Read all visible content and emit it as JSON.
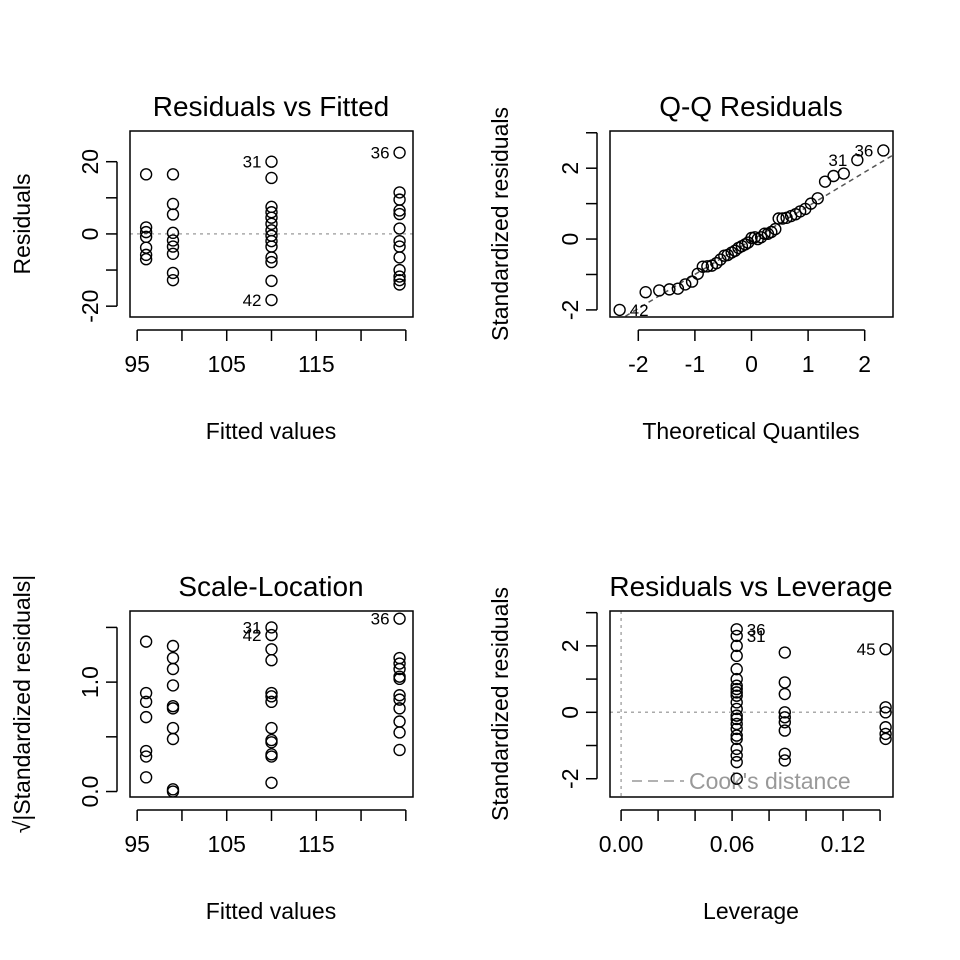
{
  "chart_data": [
    {
      "type": "scatter",
      "title": "Residuals vs Fitted",
      "xlabel": "Fitted values",
      "ylabel": "Residuals",
      "xlim": [
        94.2,
        125.8
      ],
      "ylim": [
        -23.0,
        28.5
      ],
      "xticks": [
        {
          "v": 95,
          "label": "95"
        },
        {
          "v": 105,
          "label": "105"
        },
        {
          "v": 115,
          "label": "115"
        }
      ],
      "yticks": [
        {
          "v": -20,
          "label": "-20"
        },
        {
          "v": 0,
          "label": "0"
        },
        {
          "v": 20,
          "label": "20"
        }
      ],
      "refline": {
        "y": 0,
        "style": "dotted"
      },
      "annotations": [
        {
          "label": "31",
          "x": 110,
          "y": 20,
          "side": "left"
        },
        {
          "label": "36",
          "x": 124.3,
          "y": 22.5,
          "side": "left"
        },
        {
          "label": "42",
          "x": 110,
          "y": -18.3,
          "side": "left"
        }
      ],
      "points": [
        {
          "x": 96,
          "y": 16.5
        },
        {
          "x": 96,
          "y": 1.8
        },
        {
          "x": 96,
          "y": 0.5
        },
        {
          "x": 96,
          "y": -0.8
        },
        {
          "x": 96,
          "y": -3.8
        },
        {
          "x": 96,
          "y": -5.8
        },
        {
          "x": 96,
          "y": -7.0
        },
        {
          "x": 99,
          "y": 16.5
        },
        {
          "x": 99,
          "y": 8.3
        },
        {
          "x": 99,
          "y": 5.4
        },
        {
          "x": 99,
          "y": 0.3
        },
        {
          "x": 99,
          "y": -1.8
        },
        {
          "x": 99,
          "y": -3.5
        },
        {
          "x": 99,
          "y": -5.5
        },
        {
          "x": 99,
          "y": -10.8
        },
        {
          "x": 99,
          "y": -12.8
        },
        {
          "x": 110,
          "y": 20.0
        },
        {
          "x": 110,
          "y": 15.5
        },
        {
          "x": 110,
          "y": 7.5
        },
        {
          "x": 110,
          "y": 6.0
        },
        {
          "x": 110,
          "y": 4.5
        },
        {
          "x": 110,
          "y": 2.8
        },
        {
          "x": 110,
          "y": 1.0
        },
        {
          "x": 110,
          "y": -0.5
        },
        {
          "x": 110,
          "y": -2.0
        },
        {
          "x": 110,
          "y": -3.5
        },
        {
          "x": 110,
          "y": -6.5
        },
        {
          "x": 110,
          "y": -7.8
        },
        {
          "x": 110,
          "y": -13.0
        },
        {
          "x": 110,
          "y": -18.3
        },
        {
          "x": 124.3,
          "y": 22.5
        },
        {
          "x": 124.3,
          "y": 11.5
        },
        {
          "x": 124.3,
          "y": 9.5
        },
        {
          "x": 124.3,
          "y": 6.5
        },
        {
          "x": 124.3,
          "y": 5.5
        },
        {
          "x": 124.3,
          "y": 1.5
        },
        {
          "x": 124.3,
          "y": -2.0
        },
        {
          "x": 124.3,
          "y": -3.5
        },
        {
          "x": 124.3,
          "y": -6.5
        },
        {
          "x": 124.3,
          "y": -10.0
        },
        {
          "x": 124.3,
          "y": -11.8
        },
        {
          "x": 124.3,
          "y": -12.8
        },
        {
          "x": 124.3,
          "y": -14.0
        }
      ]
    },
    {
      "type": "scatter",
      "title": "Q-Q Residuals",
      "xlabel": "Theoretical Quantiles",
      "ylabel": "Standardized residuals",
      "xlim": [
        -2.5,
        2.5
      ],
      "ylim": [
        -2.2,
        3.05
      ],
      "xticks": [
        {
          "v": -2,
          "label": "-2"
        },
        {
          "v": -1,
          "label": "-1"
        },
        {
          "v": 0,
          "label": "0"
        },
        {
          "v": 1,
          "label": "1"
        },
        {
          "v": 2,
          "label": "2"
        }
      ],
      "yticks": [
        {
          "v": -2,
          "label": "-2"
        },
        {
          "v": 0,
          "label": "0"
        },
        {
          "v": 2,
          "label": "2"
        }
      ],
      "refline": {
        "type": "diagonal",
        "from": [
          -2.5,
          -2.44
        ],
        "to": [
          2.5,
          2.37
        ],
        "style": "dashed"
      },
      "annotations": [
        {
          "label": "36",
          "x": 2.33,
          "y": 2.5,
          "side": "left"
        },
        {
          "label": "31",
          "x": 1.87,
          "y": 2.23,
          "side": "left"
        },
        {
          "label": "42",
          "x": -2.33,
          "y": -2.0,
          "side": "right"
        }
      ],
      "points": [
        {
          "x": -2.33,
          "y": -2.0
        },
        {
          "x": -1.87,
          "y": -1.5
        },
        {
          "x": -1.63,
          "y": -1.45
        },
        {
          "x": -1.45,
          "y": -1.42
        },
        {
          "x": -1.3,
          "y": -1.4
        },
        {
          "x": -1.17,
          "y": -1.28
        },
        {
          "x": -1.05,
          "y": -1.2
        },
        {
          "x": -0.95,
          "y": -0.98
        },
        {
          "x": -0.86,
          "y": -0.78
        },
        {
          "x": -0.78,
          "y": -0.77
        },
        {
          "x": -0.7,
          "y": -0.75
        },
        {
          "x": -0.62,
          "y": -0.68
        },
        {
          "x": -0.55,
          "y": -0.58
        },
        {
          "x": -0.48,
          "y": -0.47
        },
        {
          "x": -0.42,
          "y": -0.45
        },
        {
          "x": -0.35,
          "y": -0.38
        },
        {
          "x": -0.29,
          "y": -0.33
        },
        {
          "x": -0.23,
          "y": -0.25
        },
        {
          "x": -0.17,
          "y": -0.2
        },
        {
          "x": -0.11,
          "y": -0.15
        },
        {
          "x": -0.06,
          "y": -0.1
        },
        {
          "x": 0.0,
          "y": 0.03
        },
        {
          "x": 0.06,
          "y": 0.05
        },
        {
          "x": 0.11,
          "y": 0.0
        },
        {
          "x": 0.17,
          "y": 0.05
        },
        {
          "x": 0.23,
          "y": 0.15
        },
        {
          "x": 0.29,
          "y": 0.15
        },
        {
          "x": 0.35,
          "y": 0.2
        },
        {
          "x": 0.42,
          "y": 0.28
        },
        {
          "x": 0.48,
          "y": 0.58
        },
        {
          "x": 0.55,
          "y": 0.58
        },
        {
          "x": 0.62,
          "y": 0.6
        },
        {
          "x": 0.7,
          "y": 0.65
        },
        {
          "x": 0.78,
          "y": 0.7
        },
        {
          "x": 0.86,
          "y": 0.78
        },
        {
          "x": 0.95,
          "y": 0.85
        },
        {
          "x": 1.05,
          "y": 1.0
        },
        {
          "x": 1.17,
          "y": 1.15
        },
        {
          "x": 1.3,
          "y": 1.62
        },
        {
          "x": 1.45,
          "y": 1.78
        },
        {
          "x": 1.63,
          "y": 1.85
        },
        {
          "x": 1.87,
          "y": 2.23
        },
        {
          "x": 2.33,
          "y": 2.5
        }
      ]
    },
    {
      "type": "scatter",
      "title": "Scale-Location",
      "xlabel": "Fitted values",
      "ylabel": "√|Standardized residuals|",
      "xlim": [
        94.2,
        125.8
      ],
      "ylim": [
        -0.05,
        1.65
      ],
      "xticks": [
        {
          "v": 95,
          "label": "95"
        },
        {
          "v": 105,
          "label": "105"
        },
        {
          "v": 115,
          "label": "115"
        }
      ],
      "yticks": [
        {
          "v": 0.0,
          "label": "0.0"
        },
        {
          "v": 1.0,
          "label": "1.0"
        }
      ],
      "annotations": [
        {
          "label": "36",
          "x": 124.3,
          "y": 1.58,
          "side": "left"
        },
        {
          "label": "31",
          "x": 110,
          "y": 1.5,
          "side": "left"
        },
        {
          "label": "42",
          "x": 110,
          "y": 1.43,
          "side": "left"
        }
      ],
      "points": [
        {
          "x": 96,
          "y": 1.37
        },
        {
          "x": 96,
          "y": 0.9
        },
        {
          "x": 96,
          "y": 0.82
        },
        {
          "x": 96,
          "y": 0.68
        },
        {
          "x": 96,
          "y": 0.37
        },
        {
          "x": 96,
          "y": 0.32
        },
        {
          "x": 96,
          "y": 0.13
        },
        {
          "x": 99,
          "y": 1.33
        },
        {
          "x": 99,
          "y": 1.22
        },
        {
          "x": 99,
          "y": 1.12
        },
        {
          "x": 99,
          "y": 0.97
        },
        {
          "x": 99,
          "y": 0.78
        },
        {
          "x": 99,
          "y": 0.76
        },
        {
          "x": 99,
          "y": 0.58
        },
        {
          "x": 99,
          "y": 0.48
        },
        {
          "x": 99,
          "y": 0.02
        },
        {
          "x": 99,
          "y": 0.0
        },
        {
          "x": 110,
          "y": 1.5
        },
        {
          "x": 110,
          "y": 1.43
        },
        {
          "x": 110,
          "y": 1.3
        },
        {
          "x": 110,
          "y": 1.2
        },
        {
          "x": 110,
          "y": 0.9
        },
        {
          "x": 110,
          "y": 0.87
        },
        {
          "x": 110,
          "y": 0.82
        },
        {
          "x": 110,
          "y": 0.58
        },
        {
          "x": 110,
          "y": 0.47
        },
        {
          "x": 110,
          "y": 0.45
        },
        {
          "x": 110,
          "y": 0.34
        },
        {
          "x": 110,
          "y": 0.32
        },
        {
          "x": 110,
          "y": 0.08
        },
        {
          "x": 124.3,
          "y": 1.58
        },
        {
          "x": 124.3,
          "y": 1.22
        },
        {
          "x": 124.3,
          "y": 1.17
        },
        {
          "x": 124.3,
          "y": 1.12
        },
        {
          "x": 124.3,
          "y": 1.05
        },
        {
          "x": 124.3,
          "y": 1.03
        },
        {
          "x": 124.3,
          "y": 0.88
        },
        {
          "x": 124.3,
          "y": 0.84
        },
        {
          "x": 124.3,
          "y": 0.76
        },
        {
          "x": 124.3,
          "y": 0.64
        },
        {
          "x": 124.3,
          "y": 0.54
        },
        {
          "x": 124.3,
          "y": 0.38
        }
      ]
    },
    {
      "type": "scatter",
      "title": "Residuals vs Leverage",
      "xlabel": "Leverage",
      "ylabel": "Standardized residuals",
      "xlim": [
        -0.006,
        0.147
      ],
      "ylim": [
        -2.55,
        3.05
      ],
      "xticks": [
        {
          "v": 0.0,
          "label": "0.00"
        },
        {
          "v": 0.06,
          "label": "0.06"
        },
        {
          "v": 0.12,
          "label": "0.12"
        }
      ],
      "yticks": [
        {
          "v": -2,
          "label": "-2"
        },
        {
          "v": 0,
          "label": "0"
        },
        {
          "v": 2,
          "label": "2"
        }
      ],
      "refline": {
        "y": 0,
        "x": 0,
        "style": "dotted"
      },
      "legend": {
        "label": "Cook's distance",
        "position": "bottom-left",
        "style": "dashed"
      },
      "annotations": [
        {
          "label": "36",
          "x": 0.0625,
          "y": 2.5,
          "side": "right"
        },
        {
          "label": "31",
          "x": 0.0625,
          "y": 2.3,
          "side": "right"
        },
        {
          "label": "45",
          "x": 0.143,
          "y": 1.9,
          "side": "left"
        }
      ],
      "points": [
        {
          "x": 0.0625,
          "y": 2.5
        },
        {
          "x": 0.0625,
          "y": 2.3
        },
        {
          "x": 0.0625,
          "y": 2.0
        },
        {
          "x": 0.0625,
          "y": 1.7
        },
        {
          "x": 0.0625,
          "y": 1.3
        },
        {
          "x": 0.0625,
          "y": 1.0
        },
        {
          "x": 0.0625,
          "y": 0.8
        },
        {
          "x": 0.0625,
          "y": 0.7
        },
        {
          "x": 0.0625,
          "y": 0.6
        },
        {
          "x": 0.0625,
          "y": 0.5
        },
        {
          "x": 0.0625,
          "y": 0.3
        },
        {
          "x": 0.0625,
          "y": 0.1
        },
        {
          "x": 0.0625,
          "y": -0.1
        },
        {
          "x": 0.0625,
          "y": -0.2
        },
        {
          "x": 0.0625,
          "y": -0.35
        },
        {
          "x": 0.0625,
          "y": -0.5
        },
        {
          "x": 0.0625,
          "y": -0.7
        },
        {
          "x": 0.0625,
          "y": -0.8
        },
        {
          "x": 0.0625,
          "y": -1.1
        },
        {
          "x": 0.0625,
          "y": -1.3
        },
        {
          "x": 0.0625,
          "y": -1.5
        },
        {
          "x": 0.0625,
          "y": -2.0
        },
        {
          "x": 0.0885,
          "y": 1.8
        },
        {
          "x": 0.0885,
          "y": 0.9
        },
        {
          "x": 0.0885,
          "y": 0.55
        },
        {
          "x": 0.0885,
          "y": 0.0
        },
        {
          "x": 0.0885,
          "y": -0.15
        },
        {
          "x": 0.0885,
          "y": -0.3
        },
        {
          "x": 0.0885,
          "y": -0.55
        },
        {
          "x": 0.0885,
          "y": -1.25
        },
        {
          "x": 0.0885,
          "y": -1.45
        },
        {
          "x": 0.143,
          "y": 1.9
        },
        {
          "x": 0.143,
          "y": 0.15
        },
        {
          "x": 0.143,
          "y": 0.0
        },
        {
          "x": 0.143,
          "y": -0.45
        },
        {
          "x": 0.143,
          "y": -0.65
        },
        {
          "x": 0.143,
          "y": -0.8
        }
      ]
    }
  ]
}
